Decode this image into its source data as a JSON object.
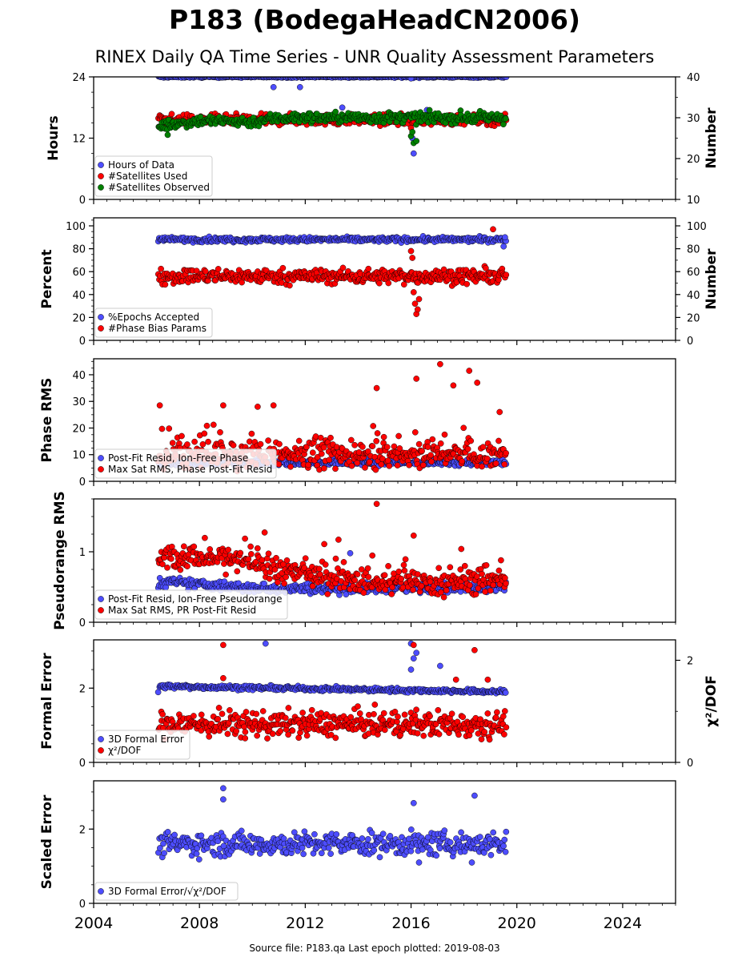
{
  "title": "P183 (BodegaHeadCN2006)",
  "subtitle": "RINEX Daily QA Time Series - UNR Quality Assessment Parameters",
  "footer": "Source file: P183.qa Last epoch plotted: 2019-08-03",
  "colors": {
    "blue": "#4d4dff",
    "red": "#ff0000",
    "green": "#008000",
    "edge": "#000000"
  },
  "chart_data": {
    "type": "scatter",
    "xlim": [
      2004,
      2026
    ],
    "x_ticks": [
      2004,
      2008,
      2012,
      2016,
      2020,
      2024
    ],
    "x_tick_labels": [
      "2004",
      "2008",
      "2012",
      "2016",
      "2020",
      "2024"
    ],
    "data_start": 2006.45,
    "data_end": 2019.59,
    "panels": [
      {
        "ylabel": "Hours",
        "ylim": [
          0,
          24
        ],
        "yticks": [
          "0",
          "12",
          "24"
        ],
        "ytick_values": [
          0,
          12,
          24
        ],
        "y2label": "Number",
        "y2lim": [
          10,
          40
        ],
        "y2ticks": [
          "10",
          "20",
          "30",
          "40"
        ],
        "y2tick_values": [
          10,
          20,
          30,
          40
        ],
        "series": [
          {
            "name": "Hours of Data",
            "color": "blue",
            "axis": "left",
            "typical": 24,
            "spread": 0.12,
            "outliers": [
              [
                2010.8,
                22
              ],
              [
                2011.8,
                22
              ],
              [
                2013.4,
                18
              ],
              [
                2016.05,
                12
              ],
              [
                2016.1,
                9
              ],
              [
                2016.6,
                17.5
              ],
              [
                2016.0,
                23.7
              ]
            ]
          },
          {
            "name": "#Satellites Used",
            "color": "red",
            "axis": "right",
            "typical": 29.5,
            "spread": 0.9,
            "outliers": [
              [
                2009.4,
                30
              ],
              [
                2016.0,
                27.5
              ]
            ]
          },
          {
            "name": "#Satellites Observed",
            "color": "green",
            "axis": "right",
            "trend": [
              [
                2006.45,
                28
              ],
              [
                2008.0,
                29.3
              ],
              [
                2010.0,
                29.0
              ],
              [
                2011.0,
                30.0
              ],
              [
                2019.59,
                30.0
              ]
            ],
            "spread": 0.9,
            "outliers": [
              [
                2006.8,
                25.8
              ],
              [
                2016.0,
                25.5
              ],
              [
                2016.1,
                23.8
              ],
              [
                2016.2,
                24.3
              ],
              [
                2016.05,
                26.5
              ]
            ]
          }
        ]
      },
      {
        "ylabel": "Percent",
        "ylim": [
          0,
          107
        ],
        "yticks": [
          "0",
          "20",
          "40",
          "60",
          "80",
          "100"
        ],
        "ytick_values": [
          0,
          20,
          40,
          60,
          80,
          100
        ],
        "y2label": "Number",
        "y2lim": [
          0,
          107
        ],
        "y2ticks": [
          "0",
          "20",
          "40",
          "60",
          "80",
          "100"
        ],
        "y2tick_values": [
          0,
          20,
          40,
          60,
          80,
          100
        ],
        "series": [
          {
            "name": "%Epochs Accepted",
            "color": "blue",
            "axis": "left",
            "typical": 88,
            "spread": 1.5,
            "outliers": [
              [
                2019.5,
                82
              ],
              [
                2019.55,
                90
              ]
            ]
          },
          {
            "name": "#Phase Bias Params",
            "color": "red",
            "axis": "right",
            "typical": 56,
            "spread": 4.5,
            "outliers": [
              [
                2016.0,
                78
              ],
              [
                2016.05,
                72
              ],
              [
                2016.1,
                42
              ],
              [
                2016.15,
                32
              ],
              [
                2016.2,
                23
              ],
              [
                2016.25,
                27
              ],
              [
                2016.3,
                36
              ],
              [
                2019.1,
                97
              ]
            ]
          }
        ]
      },
      {
        "ylabel": "Phase RMS",
        "ylim": [
          0,
          46
        ],
        "yticks": [
          "0",
          "10",
          "20",
          "30",
          "40"
        ],
        "ytick_values": [
          0,
          10,
          20,
          30,
          40
        ],
        "series": [
          {
            "name": "Post-Fit Resid, Ion-Free Phase",
            "color": "blue",
            "axis": "left",
            "typical": 7,
            "spread": 0.8,
            "outliers": []
          },
          {
            "name": "Max Sat RMS, Phase Post-Fit Resid",
            "color": "red",
            "axis": "left",
            "typical": 10,
            "spread": 3.5,
            "outliers": [
              [
                2006.5,
                28.5
              ],
              [
                2008.9,
                28.5
              ],
              [
                2010.2,
                28
              ],
              [
                2010.8,
                28.5
              ],
              [
                2014.7,
                35
              ],
              [
                2016.2,
                38.5
              ],
              [
                2017.1,
                44
              ],
              [
                2017.6,
                36
              ],
              [
                2018.2,
                41.5
              ],
              [
                2018.5,
                37
              ],
              [
                2019.35,
                26
              ]
            ]
          }
        ]
      },
      {
        "ylabel": "Pseudorange RMS",
        "ylim": [
          0,
          1.75
        ],
        "yticks": [
          "0",
          "1"
        ],
        "ytick_values": [
          0,
          1
        ],
        "series": [
          {
            "name": "Post-Fit Resid, Ion-Free Pseudorange",
            "color": "blue",
            "axis": "left",
            "trend": [
              [
                2006.45,
                0.58
              ],
              [
                2010.0,
                0.48
              ],
              [
                2013.5,
                0.48
              ],
              [
                2019.59,
                0.5
              ]
            ],
            "spread": 0.05,
            "outliers": [
              [
                2013.7,
                0.98
              ]
            ]
          },
          {
            "name": "Max Sat RMS, PR Post-Fit Resid",
            "color": "red",
            "axis": "left",
            "trend": [
              [
                2006.45,
                0.95
              ],
              [
                2009.0,
                0.9
              ],
              [
                2011.0,
                0.72
              ],
              [
                2013.5,
                0.65
              ],
              [
                2014.0,
                0.57
              ],
              [
                2019.59,
                0.57
              ]
            ],
            "spread": 0.12,
            "outliers": [
              [
                2014.7,
                1.68
              ],
              [
                2016.1,
                1.23
              ],
              [
                2017.9,
                1.04
              ],
              [
                2019.4,
                0.88
              ]
            ]
          }
        ]
      },
      {
        "ylabel": "Formal Error",
        "ylim": [
          0,
          3.3
        ],
        "yticks": [
          "0",
          "2"
        ],
        "ytick_values": [
          0,
          2
        ],
        "y2label": "χ²/DOF",
        "y2lim": [
          0,
          2.4
        ],
        "y2ticks": [
          "0",
          "2"
        ],
        "y2tick_values": [
          0,
          2
        ],
        "series": [
          {
            "name": "3D Formal Error",
            "color": "blue",
            "axis": "left",
            "trend": [
              [
                2006.45,
                2.05
              ],
              [
                2019.59,
                1.9
              ]
            ],
            "spread": 0.04,
            "outliers": [
              [
                2010.5,
                3.2
              ],
              [
                2016.0,
                3.2
              ],
              [
                2016.1,
                2.8
              ],
              [
                2016.2,
                2.95
              ],
              [
                2016.0,
                2.5
              ],
              [
                2017.1,
                2.6
              ]
            ]
          },
          {
            "name": "χ²/DOF",
            "color": "red",
            "axis": "right",
            "typical": 0.75,
            "spread": 0.18,
            "outliers": [
              [
                2008.9,
                2.3
              ],
              [
                2008.9,
                1.65
              ],
              [
                2016.1,
                2.3
              ],
              [
                2018.4,
                2.2
              ],
              [
                2017.7,
                1.62
              ],
              [
                2018.9,
                1.62
              ]
            ]
          }
        ]
      },
      {
        "ylabel": "Scaled Error",
        "ylim": [
          0,
          3.3
        ],
        "yticks": [
          "0",
          "2"
        ],
        "ytick_values": [
          0,
          2
        ],
        "series": [
          {
            "name": "3D Formal Error/√χ²/DOF",
            "color": "blue",
            "axis": "left",
            "typical": 1.6,
            "spread": 0.22,
            "outliers": [
              [
                2008.9,
                3.1
              ],
              [
                2008.9,
                2.8
              ],
              [
                2018.4,
                2.9
              ],
              [
                2016.1,
                2.7
              ],
              [
                2016.3,
                1.1
              ],
              [
                2018.3,
                1.1
              ]
            ]
          }
        ]
      }
    ]
  }
}
